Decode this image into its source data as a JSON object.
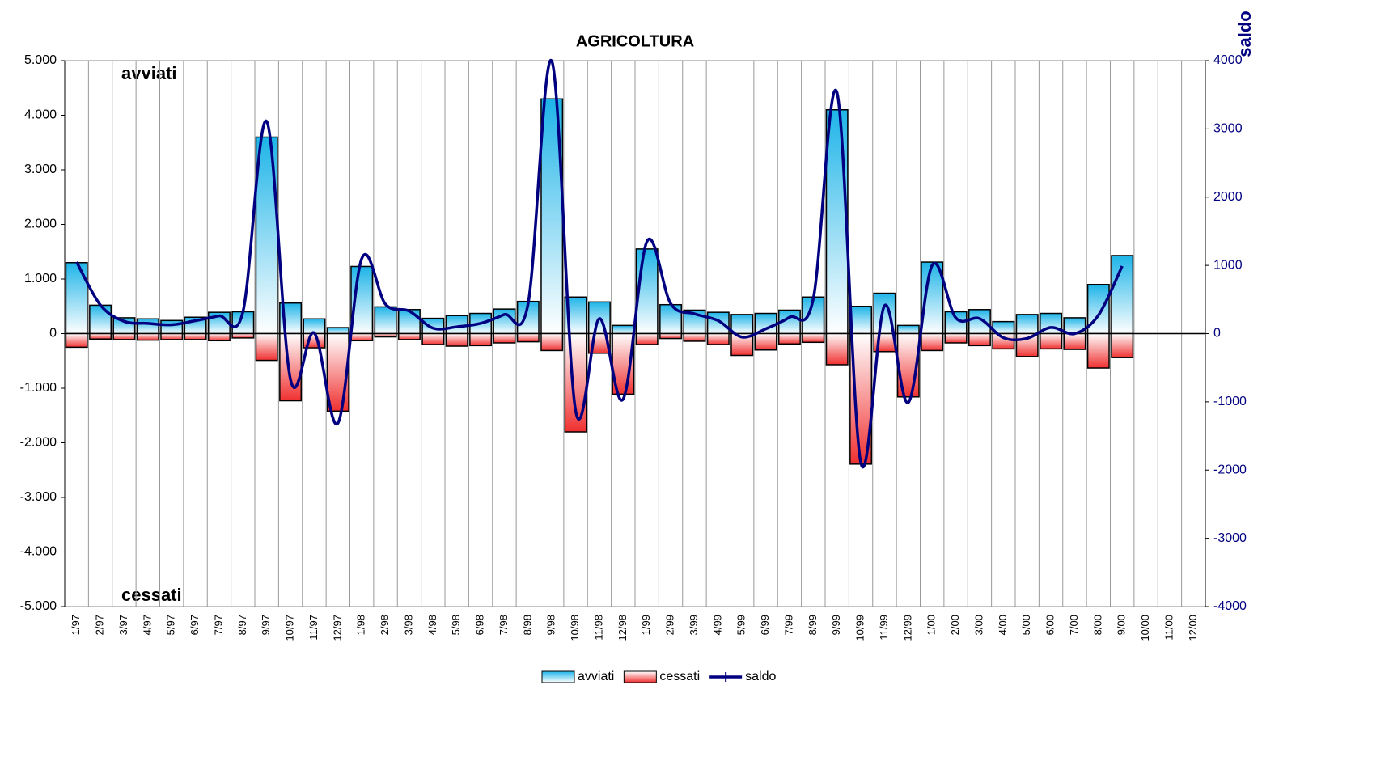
{
  "chart_data": {
    "type": "bar",
    "title": "AGRICOLTURA",
    "annotations": [
      "avviati",
      "cessati"
    ],
    "y2label": "saldo",
    "categories": [
      "1/97",
      "2/97",
      "3/97",
      "4/97",
      "5/97",
      "6/97",
      "7/97",
      "8/97",
      "9/97",
      "10/97",
      "11/97",
      "12/97",
      "1/98",
      "2/98",
      "3/98",
      "4/98",
      "5/98",
      "6/98",
      "7/98",
      "8/98",
      "9/98",
      "10/98",
      "11/98",
      "12/98",
      "1/99",
      "2/99",
      "3/99",
      "4/99",
      "5/99",
      "6/99",
      "7/99",
      "8/99",
      "9/99",
      "10/99",
      "11/99",
      "12/99",
      "1/00",
      "2/00",
      "3/00",
      "4/00",
      "5/00",
      "6/00",
      "7/00",
      "8/00",
      "9/00",
      "10/00",
      "11/00",
      "12/00"
    ],
    "series": [
      {
        "name": "avviati",
        "color": "#1eb4e8",
        "values": [
          1300,
          520,
          290,
          270,
          240,
          300,
          390,
          400,
          3600,
          560,
          270,
          110,
          1230,
          490,
          440,
          280,
          330,
          370,
          450,
          590,
          4300,
          670,
          580,
          150,
          1550,
          530,
          430,
          390,
          350,
          370,
          430,
          670,
          4100,
          500,
          740,
          150,
          1310,
          400,
          440,
          220,
          350,
          370,
          290,
          900,
          1430,
          null,
          null,
          null
        ]
      },
      {
        "name": "cessati",
        "color": "#f03030",
        "values": [
          -250,
          -100,
          -110,
          -120,
          -110,
          -110,
          -130,
          -80,
          -490,
          -1230,
          -260,
          -1420,
          -130,
          -60,
          -110,
          -200,
          -230,
          -220,
          -170,
          -150,
          -310,
          -1800,
          -360,
          -1110,
          -200,
          -90,
          -140,
          -200,
          -400,
          -300,
          -190,
          -160,
          -570,
          -2390,
          -330,
          -1160,
          -310,
          -170,
          -220,
          -280,
          -420,
          -280,
          -290,
          -630,
          -440,
          null,
          null,
          null
        ]
      },
      {
        "name": "saldo",
        "type": "line",
        "axis": "y2",
        "color": "#000080",
        "values": [
          1050,
          420,
          180,
          150,
          130,
          190,
          260,
          320,
          3110,
          -670,
          10,
          -1310,
          1100,
          430,
          330,
          80,
          100,
          150,
          280,
          440,
          3990,
          -1130,
          220,
          -960,
          1350,
          440,
          290,
          190,
          -50,
          70,
          240,
          510,
          3530,
          -1890,
          410,
          -1010,
          1000,
          230,
          220,
          -60,
          -70,
          90,
          0,
          270,
          990,
          null,
          null,
          null
        ]
      }
    ],
    "ylim": [
      -5000,
      5000
    ],
    "yticks": [
      {
        "value": -5000,
        "label": "-5.000"
      },
      {
        "value": -4000,
        "label": "-4.000"
      },
      {
        "value": -3000,
        "label": "-3.000"
      },
      {
        "value": -2000,
        "label": "-2.000"
      },
      {
        "value": -1000,
        "label": "-1.000"
      },
      0,
      {
        "value": 1000,
        "label": "1.000"
      },
      {
        "value": 2000,
        "label": "2.000"
      },
      {
        "value": 3000,
        "label": "3.000"
      },
      {
        "value": 4000,
        "label": "4.000"
      },
      {
        "value": 5000,
        "label": "5.000"
      }
    ],
    "y2lim": [
      -4000,
      4000
    ],
    "y2ticks": [
      -4000,
      -3000,
      -2000,
      -1000,
      0,
      1000,
      2000,
      3000,
      4000
    ],
    "legend": "bottom"
  }
}
